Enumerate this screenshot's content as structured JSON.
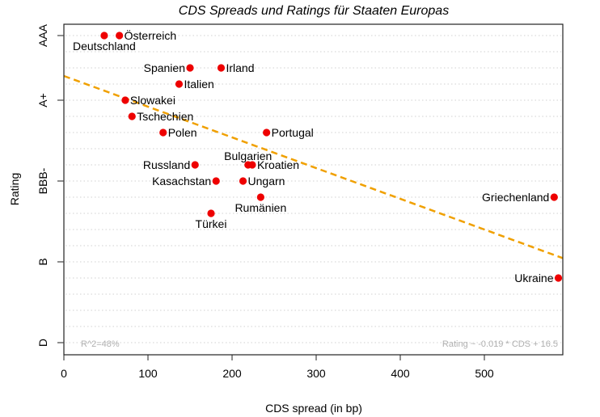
{
  "chart_data": {
    "type": "scatter",
    "title": "CDS Spreads und Ratings für Staaten Europas",
    "xlabel": "CDS spread (in bp)",
    "ylabel": "Rating",
    "xlim": [
      0,
      593
    ],
    "ylim": [
      -0.75,
      19.7
    ],
    "x_ticks": [
      0,
      100,
      200,
      300,
      400,
      500
    ],
    "y_ticks": [
      {
        "value": 19,
        "label": "AAA"
      },
      {
        "value": 15,
        "label": "A+"
      },
      {
        "value": 10,
        "label": "BBB-"
      },
      {
        "value": 5,
        "label": "B"
      },
      {
        "value": 0,
        "label": "D"
      }
    ],
    "grid": {
      "horizontal_levels": [
        0,
        1,
        2,
        3,
        4,
        5,
        6,
        7,
        8,
        9,
        10,
        11,
        12,
        13,
        14,
        15,
        16,
        17,
        18,
        19
      ],
      "style": "dotted"
    },
    "point_color": "#ee0000",
    "points": [
      {
        "name": "Deutschland",
        "cds": 48,
        "rating": 19,
        "label_pos": "below"
      },
      {
        "name": "Österreich",
        "cds": 66,
        "rating": 19,
        "label_pos": "right"
      },
      {
        "name": "Spanien",
        "cds": 150,
        "rating": 17,
        "label_pos": "left"
      },
      {
        "name": "Irland",
        "cds": 187,
        "rating": 17,
        "label_pos": "right"
      },
      {
        "name": "Italien",
        "cds": 137,
        "rating": 16,
        "label_pos": "right"
      },
      {
        "name": "Slowakei",
        "cds": 73,
        "rating": 15,
        "label_pos": "right"
      },
      {
        "name": "Tschechien",
        "cds": 81,
        "rating": 14,
        "label_pos": "right"
      },
      {
        "name": "Polen",
        "cds": 118,
        "rating": 13,
        "label_pos": "right"
      },
      {
        "name": "Portugal",
        "cds": 241,
        "rating": 13,
        "label_pos": "right"
      },
      {
        "name": "Russland",
        "cds": 156,
        "rating": 11,
        "label_pos": "left"
      },
      {
        "name": "Bulgarien",
        "cds": 219,
        "rating": 11,
        "label_pos": "above"
      },
      {
        "name": "Kroatien",
        "cds": 224,
        "rating": 11,
        "label_pos": "right"
      },
      {
        "name": "Kasachstan",
        "cds": 181,
        "rating": 10,
        "label_pos": "left"
      },
      {
        "name": "Ungarn",
        "cds": 213,
        "rating": 10,
        "label_pos": "right"
      },
      {
        "name": "Rumänien",
        "cds": 234,
        "rating": 9,
        "label_pos": "below"
      },
      {
        "name": "Türkei",
        "cds": 175,
        "rating": 8,
        "label_pos": "below"
      },
      {
        "name": "Griechenland",
        "cds": 583,
        "rating": 9,
        "label_pos": "left"
      },
      {
        "name": "Ukraine",
        "cds": 588,
        "rating": 4,
        "label_pos": "left"
      }
    ],
    "regression": {
      "slope": -0.019,
      "intercept": 16.5,
      "color": "#f0a000",
      "style": "dashed"
    },
    "annotations": {
      "r_squared": "R^2=48%",
      "formula": "Rating ~ -0.019 * CDS + 16.5"
    }
  }
}
